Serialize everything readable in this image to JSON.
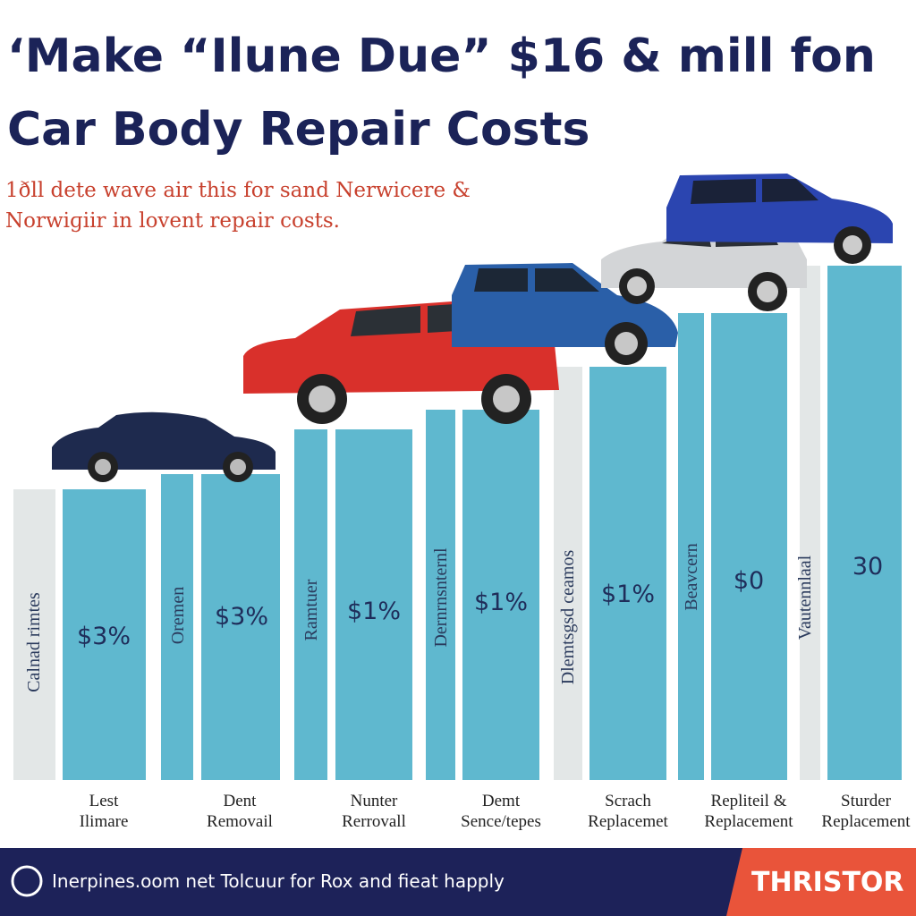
{
  "header": {
    "title": [
      "‘Make “Ilune Due” $16 & mill fon",
      "Car Body Repair Costs"
    ],
    "subtitle": [
      "1ðll dete wave air this for sand Nerwicere &",
      "Norwiɡiir in lovent repair costs."
    ]
  },
  "groups": [
    {
      "side_label": "Calnad rimtes",
      "value_label": "$3%",
      "category": [
        "Lest",
        "Ilimare"
      ]
    },
    {
      "side_label": "Oremen",
      "value_label": "$3%",
      "category": [
        "Dent",
        "Removail"
      ]
    },
    {
      "side_label": "Ramtuer",
      "value_label": "$1%",
      "category": [
        "Nunter",
        "Rerrovall"
      ]
    },
    {
      "side_label": "Dernrnsnternl",
      "value_label": "$1%",
      "category": [
        "Demt",
        "Sence/tepes"
      ]
    },
    {
      "side_label": "Dlemtsgsd ceamos",
      "value_label": "$1%",
      "category": [
        "Scrach",
        "Replacemet"
      ]
    },
    {
      "side_label": "Beavcern",
      "value_label": "$0",
      "category": [
        "Repliteil &",
        "Replacement"
      ]
    },
    {
      "side_label": "Vautennlaal",
      "value_label": "30",
      "category": [
        "Sturder",
        "Replacement"
      ]
    }
  ],
  "footer": {
    "text": "Inerpines.oom net Tolcuur for Rox and fieat happly",
    "brand": "THRISTOR"
  }
}
